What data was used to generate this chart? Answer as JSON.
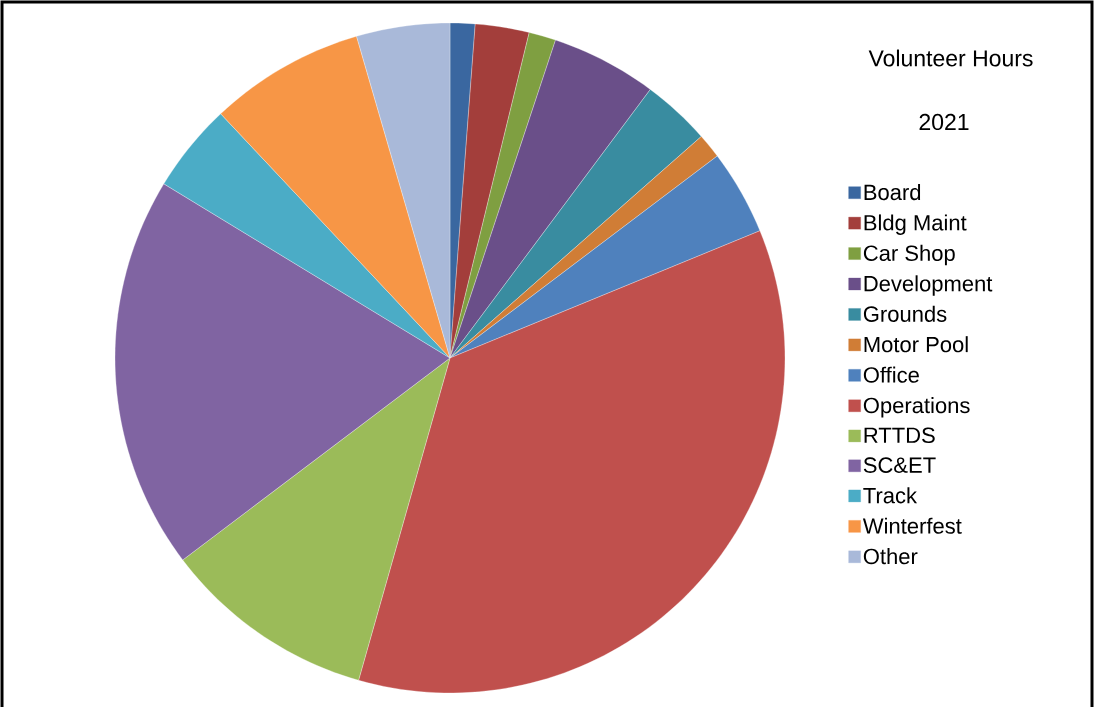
{
  "chart_data": {
    "type": "pie",
    "title": "Volunteer Hours",
    "subtitle": "2021",
    "categories": [
      "Board",
      "Bldg Maint",
      "Car Shop",
      "Development",
      "Grounds",
      "Motor Pool",
      "Office",
      "Operations",
      "RTTDS",
      "SC&ET",
      "Track",
      "Winterfest",
      "Other"
    ],
    "values": [
      1.2,
      2.6,
      1.3,
      5.1,
      3.3,
      1.2,
      4.1,
      35.6,
      10.3,
      19.0,
      4.3,
      7.5,
      4.5
    ],
    "colors": [
      "#3a67a0",
      "#a33e3b",
      "#7f9f41",
      "#6a4f89",
      "#398ca0",
      "#d07d36",
      "#4f81bd",
      "#c0504d",
      "#9bbb59",
      "#8064a2",
      "#4bacc6",
      "#f79646",
      "#a9b9d9"
    ],
    "legend": "right"
  }
}
